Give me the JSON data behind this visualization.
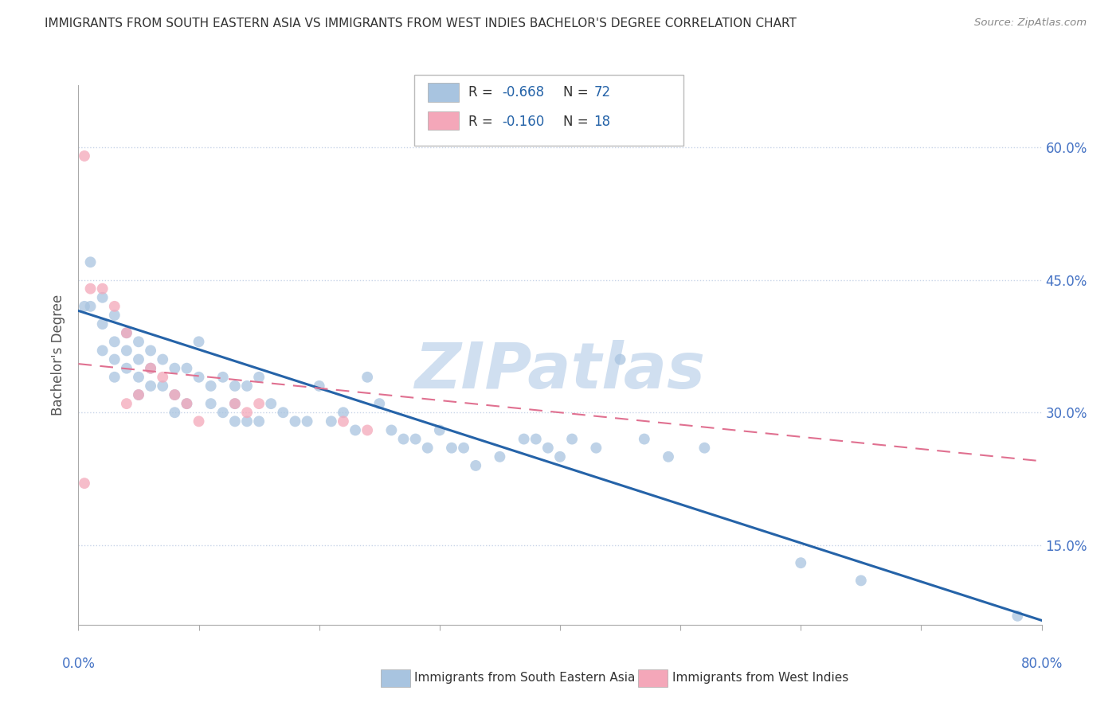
{
  "title": "IMMIGRANTS FROM SOUTH EASTERN ASIA VS IMMIGRANTS FROM WEST INDIES BACHELOR'S DEGREE CORRELATION CHART",
  "source": "Source: ZipAtlas.com",
  "ylabel": "Bachelor's Degree",
  "watermark": "ZIPatlas",
  "legend_blue_label": "Immigrants from South Eastern Asia",
  "legend_pink_label": "Immigrants from West Indies",
  "xlim": [
    0.0,
    0.8
  ],
  "ylim": [
    0.06,
    0.67
  ],
  "yticks": [
    0.15,
    0.3,
    0.45,
    0.6
  ],
  "ytick_labels": [
    "15.0%",
    "30.0%",
    "45.0%",
    "60.0%"
  ],
  "xtick_left": "0.0%",
  "xtick_right": "80.0%",
  "blue_scatter_x": [
    0.005,
    0.01,
    0.01,
    0.02,
    0.02,
    0.02,
    0.03,
    0.03,
    0.03,
    0.03,
    0.04,
    0.04,
    0.04,
    0.05,
    0.05,
    0.05,
    0.05,
    0.06,
    0.06,
    0.06,
    0.07,
    0.07,
    0.08,
    0.08,
    0.08,
    0.09,
    0.09,
    0.1,
    0.1,
    0.11,
    0.11,
    0.12,
    0.12,
    0.13,
    0.13,
    0.13,
    0.14,
    0.14,
    0.15,
    0.15,
    0.16,
    0.17,
    0.18,
    0.19,
    0.2,
    0.21,
    0.22,
    0.23,
    0.24,
    0.25,
    0.26,
    0.27,
    0.28,
    0.29,
    0.3,
    0.31,
    0.32,
    0.33,
    0.35,
    0.37,
    0.38,
    0.39,
    0.4,
    0.41,
    0.43,
    0.45,
    0.47,
    0.49,
    0.52,
    0.6,
    0.65,
    0.78
  ],
  "blue_scatter_y": [
    0.42,
    0.47,
    0.42,
    0.43,
    0.4,
    0.37,
    0.41,
    0.38,
    0.36,
    0.34,
    0.39,
    0.37,
    0.35,
    0.38,
    0.36,
    0.34,
    0.32,
    0.37,
    0.35,
    0.33,
    0.36,
    0.33,
    0.35,
    0.32,
    0.3,
    0.35,
    0.31,
    0.38,
    0.34,
    0.33,
    0.31,
    0.34,
    0.3,
    0.33,
    0.31,
    0.29,
    0.33,
    0.29,
    0.34,
    0.29,
    0.31,
    0.3,
    0.29,
    0.29,
    0.33,
    0.29,
    0.3,
    0.28,
    0.34,
    0.31,
    0.28,
    0.27,
    0.27,
    0.26,
    0.28,
    0.26,
    0.26,
    0.24,
    0.25,
    0.27,
    0.27,
    0.26,
    0.25,
    0.27,
    0.26,
    0.36,
    0.27,
    0.25,
    0.26,
    0.13,
    0.11,
    0.07
  ],
  "pink_scatter_x": [
    0.005,
    0.01,
    0.02,
    0.03,
    0.04,
    0.04,
    0.05,
    0.06,
    0.07,
    0.08,
    0.09,
    0.1,
    0.13,
    0.14,
    0.22,
    0.24,
    0.005,
    0.15
  ],
  "pink_scatter_y": [
    0.59,
    0.44,
    0.44,
    0.42,
    0.39,
    0.31,
    0.32,
    0.35,
    0.34,
    0.32,
    0.31,
    0.29,
    0.31,
    0.3,
    0.29,
    0.28,
    0.22,
    0.31
  ],
  "blue_line_x0": 0.0,
  "blue_line_x1": 0.8,
  "blue_line_y0": 0.415,
  "blue_line_y1": 0.065,
  "pink_line_x0": 0.0,
  "pink_line_x1": 0.8,
  "pink_line_y0": 0.355,
  "pink_line_y1": 0.245,
  "blue_color": "#a8c4e0",
  "pink_color": "#f4a7b9",
  "blue_line_color": "#2563a8",
  "pink_line_color": "#e07090",
  "background_color": "#ffffff",
  "grid_color": "#c8d4e8",
  "title_color": "#333333",
  "axis_label_color": "#4472c4",
  "watermark_color": "#d0dff0",
  "scatter_size": 100,
  "scatter_alpha": 0.75
}
